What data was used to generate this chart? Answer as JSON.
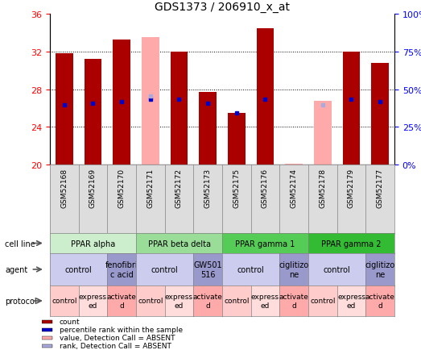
{
  "title": "GDS1373 / 206910_x_at",
  "samples": [
    "GSM52168",
    "GSM52169",
    "GSM52170",
    "GSM52171",
    "GSM52172",
    "GSM52173",
    "GSM52175",
    "GSM52176",
    "GSM52174",
    "GSM52178",
    "GSM52179",
    "GSM52177"
  ],
  "bar_values": [
    31.8,
    31.2,
    33.3,
    null,
    32.0,
    27.7,
    25.5,
    34.5,
    null,
    null,
    32.0,
    30.8
  ],
  "absent_bar_values": [
    null,
    null,
    null,
    33.5,
    null,
    null,
    null,
    null,
    20.1,
    26.8,
    null,
    null
  ],
  "rank_values": [
    26.3,
    26.5,
    26.7,
    26.9,
    26.9,
    26.5,
    25.5,
    26.9,
    null,
    null,
    26.9,
    26.7
  ],
  "absent_rank_values": [
    null,
    null,
    null,
    27.3,
    null,
    null,
    null,
    null,
    null,
    26.3,
    null,
    null
  ],
  "bar_color": "#aa0000",
  "absent_bar_color": "#ffaaaa",
  "rank_color": "#0000cc",
  "absent_rank_color": "#aaaadd",
  "ylim_left": [
    20,
    36
  ],
  "ylim_right": [
    0,
    100
  ],
  "yticks_left": [
    20,
    24,
    28,
    32,
    36
  ],
  "yticks_right": [
    0,
    25,
    50,
    75,
    100
  ],
  "ytick_labels_right": [
    "0%",
    "25%",
    "50%",
    "75%",
    "100%"
  ],
  "cell_line_groups": [
    {
      "label": "PPAR alpha",
      "start": 0,
      "end": 3,
      "color": "#cceecc"
    },
    {
      "label": "PPAR beta delta",
      "start": 3,
      "end": 6,
      "color": "#99dd99"
    },
    {
      "label": "PPAR gamma 1",
      "start": 6,
      "end": 9,
      "color": "#55cc55"
    },
    {
      "label": "PPAR gamma 2",
      "start": 9,
      "end": 12,
      "color": "#33bb33"
    }
  ],
  "agent_groups": [
    {
      "label": "control",
      "start": 0,
      "end": 2,
      "color": "#ccccee"
    },
    {
      "label": "fenofibri\nc acid",
      "start": 2,
      "end": 3,
      "color": "#9999cc"
    },
    {
      "label": "control",
      "start": 3,
      "end": 5,
      "color": "#ccccee"
    },
    {
      "label": "GW501\n516",
      "start": 5,
      "end": 6,
      "color": "#9999cc"
    },
    {
      "label": "control",
      "start": 6,
      "end": 8,
      "color": "#ccccee"
    },
    {
      "label": "ciglitizo\nne",
      "start": 8,
      "end": 9,
      "color": "#9999cc"
    },
    {
      "label": "control",
      "start": 9,
      "end": 11,
      "color": "#ccccee"
    },
    {
      "label": "ciglitizo\nne",
      "start": 11,
      "end": 12,
      "color": "#9999cc"
    }
  ],
  "protocol_groups": [
    {
      "label": "control",
      "start": 0,
      "end": 1,
      "color": "#ffcccc"
    },
    {
      "label": "express\ned",
      "start": 1,
      "end": 2,
      "color": "#ffdddd"
    },
    {
      "label": "activate\nd",
      "start": 2,
      "end": 3,
      "color": "#ffaaaa"
    },
    {
      "label": "control",
      "start": 3,
      "end": 4,
      "color": "#ffcccc"
    },
    {
      "label": "express\ned",
      "start": 4,
      "end": 5,
      "color": "#ffdddd"
    },
    {
      "label": "activate\nd",
      "start": 5,
      "end": 6,
      "color": "#ffaaaa"
    },
    {
      "label": "control",
      "start": 6,
      "end": 7,
      "color": "#ffcccc"
    },
    {
      "label": "express\ned",
      "start": 7,
      "end": 8,
      "color": "#ffdddd"
    },
    {
      "label": "activate\nd",
      "start": 8,
      "end": 9,
      "color": "#ffaaaa"
    },
    {
      "label": "control",
      "start": 9,
      "end": 10,
      "color": "#ffcccc"
    },
    {
      "label": "express\ned",
      "start": 10,
      "end": 11,
      "color": "#ffdddd"
    },
    {
      "label": "activate\nd",
      "start": 11,
      "end": 12,
      "color": "#ffaaaa"
    }
  ],
  "legend_items": [
    {
      "label": "count",
      "color": "#aa0000"
    },
    {
      "label": "percentile rank within the sample",
      "color": "#0000cc"
    },
    {
      "label": "value, Detection Call = ABSENT",
      "color": "#ffaaaa"
    },
    {
      "label": "rank, Detection Call = ABSENT",
      "color": "#aaaadd"
    }
  ],
  "row_labels": [
    "cell line",
    "agent",
    "protocol"
  ],
  "background_color": "#ffffff",
  "sample_bg_color": "#dddddd",
  "label_bg_color": "#eeeeee"
}
